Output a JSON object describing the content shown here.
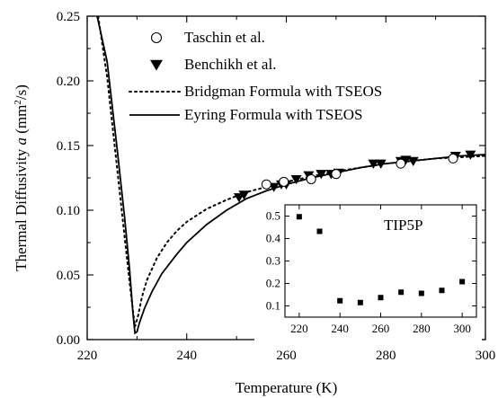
{
  "chart_data": [
    {
      "type": "line",
      "xlabel": "Temperature (K)",
      "ylabel_main": "Thermal Diffusivity ",
      "ylabel_italic": "a",
      "ylabel_unit_pre": " (mm",
      "ylabel_unit_sup": "2",
      "ylabel_unit_post": "/s)",
      "xlim": [
        220,
        300
      ],
      "ylim": [
        0,
        0.25
      ],
      "xticks": [
        220,
        240,
        260,
        280,
        300
      ],
      "yticks": [
        0.0,
        0.05,
        0.1,
        0.15,
        0.2,
        0.25
      ],
      "xtick_labels": [
        "220",
        "240",
        "260",
        "280",
        "300"
      ],
      "ytick_labels": [
        "0.00",
        "0.05",
        "0.10",
        "0.15",
        "0.20",
        "0.25"
      ],
      "legend_position": "top-right",
      "series": [
        {
          "name": "Taschin et al.",
          "kind": "scatter-open-circle",
          "x": [
            256.0,
            259.5,
            265.0,
            270.0,
            283.0,
            293.5
          ],
          "y": [
            0.12,
            0.122,
            0.124,
            0.128,
            0.136,
            0.14
          ]
        },
        {
          "name": "Benchikh et al.",
          "kind": "scatter-down-triangle",
          "x": [
            250.5,
            251.5,
            257.5,
            259.0,
            260.0,
            262.0,
            264.5,
            267.0,
            269.0,
            270.5,
            277.5,
            279.0,
            283.0,
            284.0,
            285.5,
            294.0,
            297.0
          ],
          "y": [
            0.11,
            0.112,
            0.118,
            0.12,
            0.12,
            0.124,
            0.127,
            0.128,
            0.128,
            0.129,
            0.136,
            0.136,
            0.138,
            0.139,
            0.138,
            0.142,
            0.143
          ]
        },
        {
          "name": "Bridgman Formula with TSEOS",
          "kind": "dotted-line",
          "x": [
            222.2,
            224,
            226,
            227.5,
            228.5,
            229.2,
            229.6,
            230.2,
            231,
            232,
            234,
            236,
            238,
            240,
            244,
            248,
            252,
            256,
            260,
            265,
            270,
            275,
            280,
            285,
            290,
            295,
            300
          ],
          "y": [
            0.25,
            0.203,
            0.133,
            0.08,
            0.045,
            0.022,
            0.01,
            0.018,
            0.033,
            0.046,
            0.063,
            0.075,
            0.084,
            0.091,
            0.101,
            0.108,
            0.114,
            0.118,
            0.122,
            0.126,
            0.13,
            0.133,
            0.136,
            0.138,
            0.14,
            0.141,
            0.142
          ]
        },
        {
          "name": "Eyring Formula with TSEOS",
          "kind": "solid-line",
          "x": [
            222.0,
            224,
            226,
            227.5,
            228.5,
            229.2,
            229.6,
            230.0,
            230.5,
            231.5,
            233,
            235,
            238,
            240,
            244,
            248,
            252,
            256,
            260,
            265,
            270,
            275,
            280,
            285,
            290,
            295,
            300
          ],
          "y": [
            0.25,
            0.215,
            0.148,
            0.095,
            0.055,
            0.02,
            0.005,
            0.006,
            0.013,
            0.024,
            0.037,
            0.051,
            0.066,
            0.075,
            0.089,
            0.1,
            0.109,
            0.115,
            0.12,
            0.125,
            0.129,
            0.133,
            0.136,
            0.138,
            0.14,
            0.142,
            0.143
          ]
        }
      ]
    },
    {
      "type": "scatter",
      "annotation": "TIP5P",
      "xlim": [
        213,
        307
      ],
      "ylim": [
        0.05,
        0.55
      ],
      "xticks": [
        220,
        240,
        260,
        280,
        300
      ],
      "yticks": [
        0.1,
        0.2,
        0.3,
        0.4,
        0.5
      ],
      "xtick_labels": [
        "220",
        "240",
        "260",
        "280",
        "300"
      ],
      "ytick_labels": [
        "0.1",
        "0.2",
        "0.3",
        "0.4",
        "0.5"
      ],
      "series": [
        {
          "kind": "scatter-square",
          "x": [
            220,
            230,
            240,
            250,
            260,
            270,
            280,
            290,
            300
          ],
          "y": [
            0.497,
            0.432,
            0.123,
            0.115,
            0.137,
            0.161,
            0.156,
            0.169,
            0.208
          ]
        }
      ]
    }
  ]
}
